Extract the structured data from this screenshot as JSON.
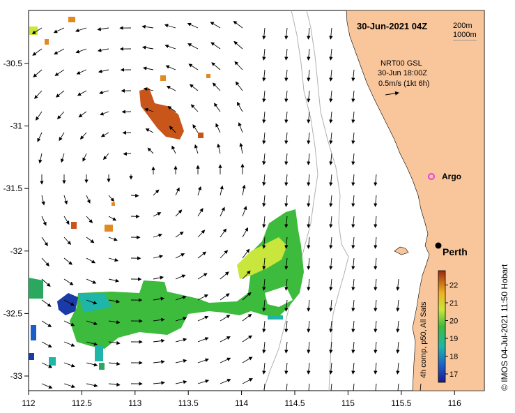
{
  "map": {
    "title": "30-Jun-2021 04Z",
    "contour_labels": [
      "200m",
      "1000m"
    ],
    "current_source": "NRT00 GSL",
    "current_time": "30-Jun 18:00Z",
    "current_scale": "0.5m/s (1kt 6h)",
    "argo_label": "Argo",
    "city_label": "Perth",
    "credit": "© IMOS 04-Jul-2021 11:50 Hobart",
    "colorbar_title": "4h comp, p50, All Sats",
    "colorbar_ticks": [
      "17",
      "18",
      "19",
      "20",
      "21",
      "22"
    ],
    "x_ticks": [
      "112",
      "112.5",
      "113",
      "113.5",
      "114",
      "114.5",
      "115",
      "115.5",
      "116"
    ],
    "y_ticks": [
      "-30.5",
      "-31",
      "-31.5",
      "-32",
      "-32.5",
      "-33"
    ],
    "colors": {
      "land": "#f9c59a",
      "sst_warm": "#c8561a",
      "sst_green": "#3dbb3d",
      "sst_blue": "#1b5ec9",
      "argo": "#e83ee8"
    }
  }
}
